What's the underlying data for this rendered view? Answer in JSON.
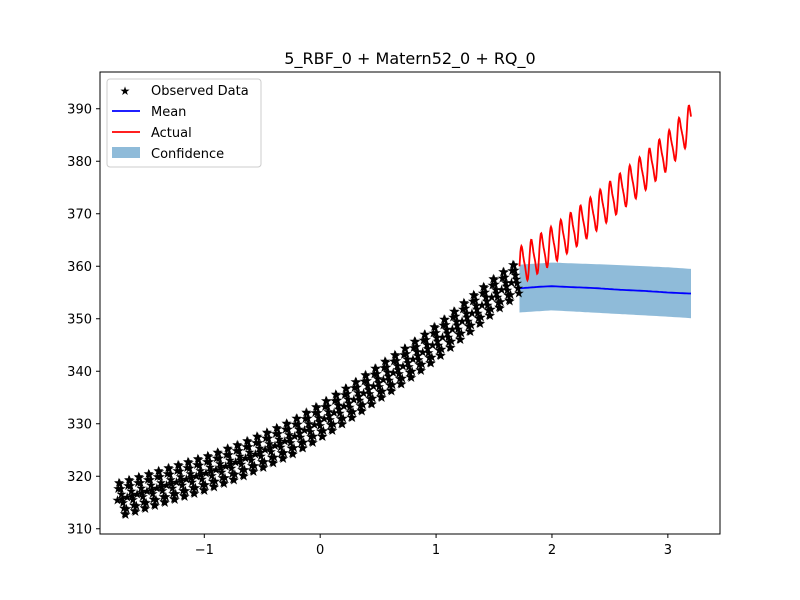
{
  "chart_data": {
    "type": "line",
    "title": "5_RBF_0 + Matern52_0 + RQ_0",
    "xlabel": "",
    "ylabel": "",
    "xlim": [
      -1.9,
      3.45
    ],
    "ylim": [
      309,
      397
    ],
    "xticks": [
      -1,
      0,
      1,
      2,
      3
    ],
    "xtick_labels": [
      "−1",
      "0",
      "1",
      "2",
      "3"
    ],
    "yticks": [
      310,
      320,
      330,
      340,
      350,
      360,
      370,
      380,
      390
    ],
    "ytick_labels": [
      "310",
      "320",
      "330",
      "340",
      "350",
      "360",
      "370",
      "380",
      "390"
    ],
    "grid": false,
    "legend_position": "upper-left",
    "legend": [
      "Observed Data",
      "Mean",
      "Actual",
      "Confidence"
    ],
    "colors": {
      "observed": "#000000",
      "mean": "#0000ff",
      "actual": "#ff0000",
      "confidence": "#1f77b4"
    },
    "observed_trend": {
      "x": [
        -1.75,
        -1.5,
        -1.25,
        -1.0,
        -0.75,
        -0.5,
        -0.25,
        0.0,
        0.25,
        0.5,
        0.75,
        1.0,
        1.25,
        1.5,
        1.72
      ],
      "y": [
        315.5,
        317.2,
        318.8,
        320.5,
        322.5,
        324.8,
        327.3,
        330.5,
        334.0,
        337.8,
        341.5,
        345.5,
        350.0,
        354.5,
        358.0
      ],
      "seasonal_amplitude": 3.0,
      "seasonal_period": 0.085
    },
    "series": [
      {
        "name": "Mean",
        "x": [
          1.72,
          1.9,
          2.0,
          2.2,
          2.4,
          2.6,
          2.8,
          3.0,
          3.2
        ],
        "y": [
          355.8,
          356.1,
          356.2,
          356.0,
          355.8,
          355.5,
          355.3,
          355.0,
          354.8
        ]
      },
      {
        "name": "Actual",
        "x": [
          1.72,
          2.0,
          2.25,
          2.5,
          2.75,
          3.0,
          3.2
        ],
        "y": [
          360.0,
          364.0,
          368.0,
          372.5,
          377.0,
          382.0,
          387.5
        ],
        "seasonal_amplitude": 3.3,
        "seasonal_period": 0.085
      },
      {
        "name": "Confidence",
        "x": [
          1.72,
          2.0,
          2.5,
          3.0,
          3.2
        ],
        "lower": [
          351.2,
          351.6,
          351.0,
          350.4,
          350.1
        ],
        "upper": [
          360.3,
          360.7,
          360.3,
          359.8,
          359.5
        ]
      }
    ]
  }
}
